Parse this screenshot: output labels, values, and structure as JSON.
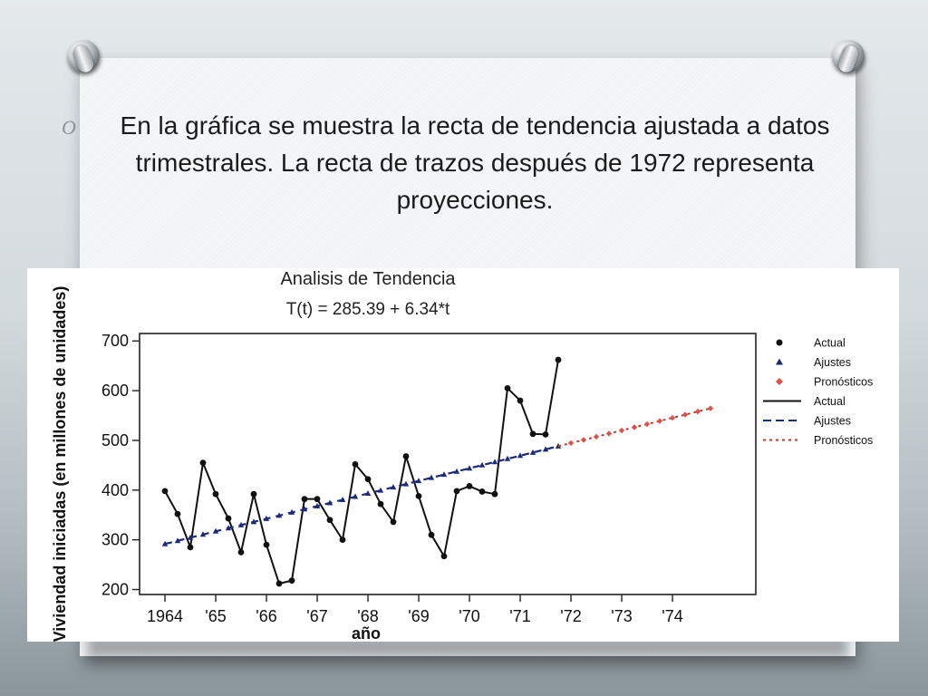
{
  "slide": {
    "bullet_text": "En la gráfica se muestra la recta de tendencia ajustada a datos trimestrales. La recta de trazos después de 1972 representa proyecciones.",
    "bullet_glyph": "O"
  },
  "chart_data": {
    "type": "line",
    "title": "Analisis de Tendencia",
    "subtitle": "T(t) = 285.39 + 6.34*t",
    "xlabel": "año",
    "ylabel": "Viviendad iniciadas (en millones de unidades)",
    "xtick_labels": [
      "1964",
      "'65",
      "'66",
      "'67",
      "'68",
      "'69",
      "'70",
      "'71",
      "'72",
      "'73",
      "'74"
    ],
    "yticks": [
      200,
      300,
      400,
      500,
      600,
      700
    ],
    "ylim": [
      190,
      715
    ],
    "xlim": [
      0,
      48
    ],
    "grid": false,
    "legend_position": "right",
    "legend": [
      {
        "label": "Actual",
        "marker": "dot",
        "color": "#111111"
      },
      {
        "label": "Ajustes",
        "marker": "triangle",
        "color": "#1c2a7a"
      },
      {
        "label": "Pronósticos",
        "marker": "diamond",
        "color": "#d9534f"
      },
      {
        "label": "Actual",
        "line": "solid",
        "color": "#111111"
      },
      {
        "label": "Ajustes",
        "line": "dashed",
        "color": "#1c2a7a"
      },
      {
        "label": "Pronósticos",
        "line": "dotted",
        "color": "#c0392b"
      }
    ],
    "series": [
      {
        "name": "Actual",
        "t": [
          1,
          2,
          3,
          4,
          5,
          6,
          7,
          8,
          9,
          10,
          11,
          12,
          13,
          14,
          15,
          16,
          17,
          18,
          19,
          20,
          21,
          22,
          23,
          24,
          25,
          26,
          27,
          28,
          29,
          30,
          31,
          32
        ],
        "values": [
          398,
          352,
          285,
          455,
          392,
          343,
          275,
          392,
          290,
          212,
          218,
          382,
          382,
          340,
          300,
          452,
          422,
          372,
          336,
          468,
          388,
          310,
          267,
          398,
          408,
          397,
          392,
          605,
          580,
          513,
          512,
          662
        ],
        "color": "#111111"
      },
      {
        "name": "Ajustes",
        "t_start": 1,
        "t_end": 32,
        "intercept": 285.39,
        "slope": 6.34,
        "color": "#1c2a7a"
      },
      {
        "name": "Pronósticos",
        "t_start": 33,
        "t_end": 44,
        "intercept": 285.39,
        "slope": 6.34,
        "color": "#d9534f"
      }
    ]
  }
}
